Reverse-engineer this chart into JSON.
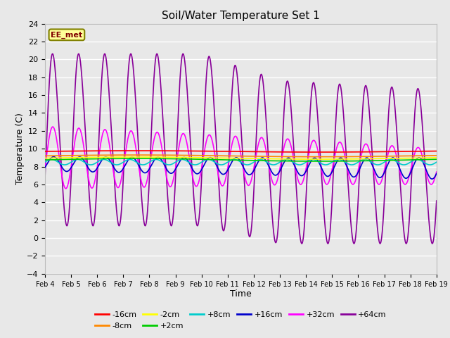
{
  "title": "Soil/Water Temperature Set 1",
  "xlabel": "Time",
  "ylabel": "Temperature (C)",
  "xlim": [
    0,
    15
  ],
  "ylim": [
    -4,
    24
  ],
  "yticks": [
    -4,
    -2,
    0,
    2,
    4,
    6,
    8,
    10,
    12,
    14,
    16,
    18,
    20,
    22,
    24
  ],
  "xtick_labels": [
    "Feb 4",
    "Feb 5",
    "Feb 6",
    "Feb 7",
    "Feb 8",
    "Feb 9",
    "Feb 10",
    "Feb 11",
    "Feb 12",
    "Feb 13",
    "Feb 14",
    "Feb 15",
    "Feb 16",
    "Feb 17",
    "Feb 18",
    "Feb 19"
  ],
  "plot_bg_color": "#e8e8e8",
  "grid_color": "#ffffff",
  "annotation_text": "EE_met",
  "annotation_bg": "#ffff99",
  "annotation_border": "#808000",
  "series": {
    "-16cm": {
      "color": "#ff0000",
      "lw": 1.2
    },
    "-8cm": {
      "color": "#ff8800",
      "lw": 1.2
    },
    "-2cm": {
      "color": "#ffff00",
      "lw": 1.2
    },
    "+2cm": {
      "color": "#00cc00",
      "lw": 1.2
    },
    "+8cm": {
      "color": "#00cccc",
      "lw": 1.2
    },
    "+16cm": {
      "color": "#0000cc",
      "lw": 1.2
    },
    "+32cm": {
      "color": "#ff00ff",
      "lw": 1.2
    },
    "+64cm": {
      "color": "#880099",
      "lw": 1.2
    }
  },
  "legend_row1": [
    "-16cm",
    "-8cm",
    "-2cm",
    "+2cm",
    "+8cm",
    "+16cm"
  ],
  "legend_row2": [
    "+32cm",
    "+64cm"
  ]
}
